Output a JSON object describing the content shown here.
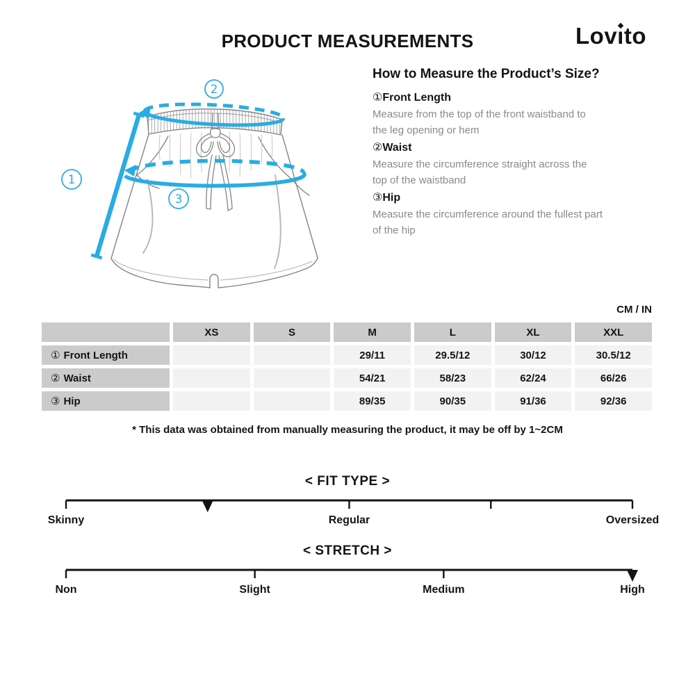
{
  "header": {
    "title": "PRODUCT MEASUREMENTS",
    "brand": {
      "name": "Lovito",
      "pre": "Lov",
      "i_char": "ı",
      "post": "to"
    }
  },
  "diagram": {
    "markers": [
      {
        "num": "1"
      },
      {
        "num": "2"
      },
      {
        "num": "3"
      }
    ]
  },
  "howto": {
    "heading": "How to Measure the Product’s Size?",
    "items": [
      {
        "num": "①",
        "title": "Front Length",
        "lines": [
          "Measure from the top of the front waistband to",
          "the leg opening or hem"
        ]
      },
      {
        "num": "②",
        "title": "Waist",
        "lines": [
          "Measure the circumference straight across the",
          "top of the waistband"
        ]
      },
      {
        "num": "③",
        "title": "Hip",
        "lines": [
          "Measure the circumference around the fullest part",
          "of the hip"
        ]
      }
    ]
  },
  "size_table": {
    "unit_label": "CM / IN",
    "columns": [
      "XS",
      "S",
      "M",
      "L",
      "XL",
      "XXL"
    ],
    "rows": [
      {
        "num": "①",
        "label": "Front Length",
        "values": [
          "",
          "",
          "29/11",
          "29.5/12",
          "30/12",
          "30.5/12"
        ]
      },
      {
        "num": "②",
        "label": "Waist",
        "values": [
          "",
          "",
          "54/21",
          "58/23",
          "62/24",
          "66/26"
        ]
      },
      {
        "num": "③",
        "label": "Hip",
        "values": [
          "",
          "",
          "89/35",
          "90/35",
          "91/36",
          "92/36"
        ]
      }
    ],
    "footnote": "* This data was obtained from manually measuring the product, it may be off by 1~2CM"
  },
  "scales": [
    {
      "title": "< FIT TYPE >",
      "ticks": [
        0,
        0.25,
        0.5,
        0.75,
        1
      ],
      "marker": 0.25,
      "labels": [
        {
          "text": "Skinny",
          "pos": 0
        },
        {
          "text": "Regular",
          "pos": 0.5
        },
        {
          "text": "Oversized",
          "pos": 1
        }
      ]
    },
    {
      "title": "< STRETCH >",
      "ticks": [
        0,
        0.3333,
        0.6667,
        1
      ],
      "marker": 1,
      "labels": [
        {
          "text": "Non",
          "pos": 0
        },
        {
          "text": "Slight",
          "pos": 0.3333
        },
        {
          "text": "Medium",
          "pos": 0.6667
        },
        {
          "text": "High",
          "pos": 1
        }
      ]
    }
  ],
  "colors": {
    "accent_cyan": "#29ACE3",
    "table_header_bg": "#cbcbcb",
    "table_cell_bg": "#f2f2f2",
    "text_gray": "#8a8a8a",
    "line_art_gray": "#858585"
  }
}
